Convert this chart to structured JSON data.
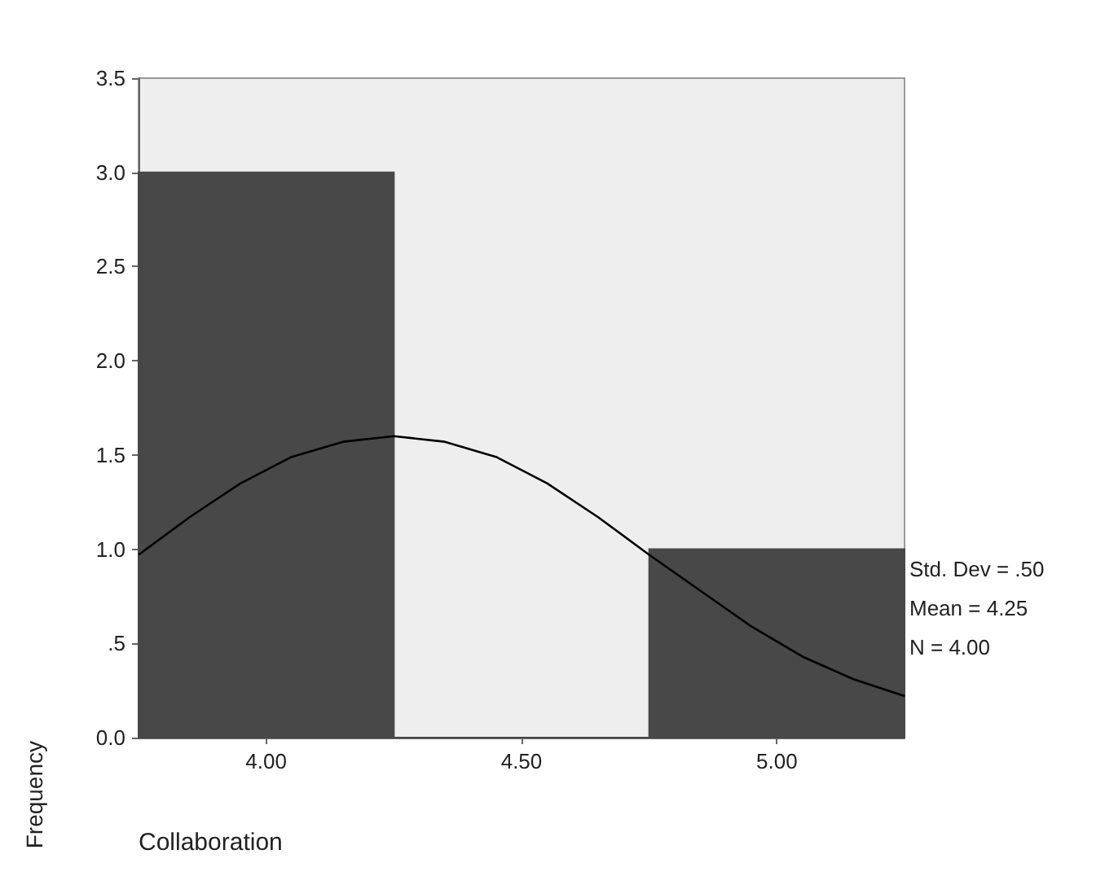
{
  "chart_data": {
    "type": "histogram",
    "xlabel": "Collaboration",
    "ylabel": "Frequency",
    "bins": [
      3.75,
      4.25,
      4.75,
      5.25
    ],
    "series": [
      {
        "color": "#484848",
        "values": [
          3,
          0,
          1
        ]
      },
      {
        "type": "line",
        "color": "#000000",
        "x": [
          3.75,
          3.85,
          3.95,
          4.05,
          4.15,
          4.25,
          4.35,
          4.45,
          4.55,
          4.65,
          4.75,
          4.85,
          4.95,
          5.05,
          5.15,
          5.25
        ],
        "values": [
          0.97,
          1.17,
          1.35,
          1.49,
          1.57,
          1.6,
          1.57,
          1.49,
          1.35,
          1.17,
          0.97,
          0.78,
          0.59,
          0.43,
          0.31,
          0.22
        ]
      }
    ],
    "xlim": [
      3.75,
      5.25
    ],
    "xticks": [
      {
        "value": 4,
        "label": "4.00"
      },
      {
        "value": 4.5,
        "label": "4.50"
      },
      {
        "value": 5,
        "label": "5.00"
      }
    ],
    "ylim": [
      0,
      3.5
    ],
    "yticks": [
      {
        "value": 0,
        "label": "0.0"
      },
      {
        "value": 0.5,
        "label": ".5"
      },
      {
        "value": 1,
        "label": "1.0"
      },
      {
        "value": 1.5,
        "label": "1.5"
      },
      {
        "value": 2,
        "label": "2.0"
      },
      {
        "value": 2.5,
        "label": "2.5"
      },
      {
        "value": 3,
        "label": "3.0"
      },
      {
        "value": 3.5,
        "label": "3.5"
      }
    ],
    "annotations": [
      "Std. Dev = .50",
      "Mean = 4.25",
      "N = 4.00"
    ],
    "marker": "none",
    "grid": false
  }
}
